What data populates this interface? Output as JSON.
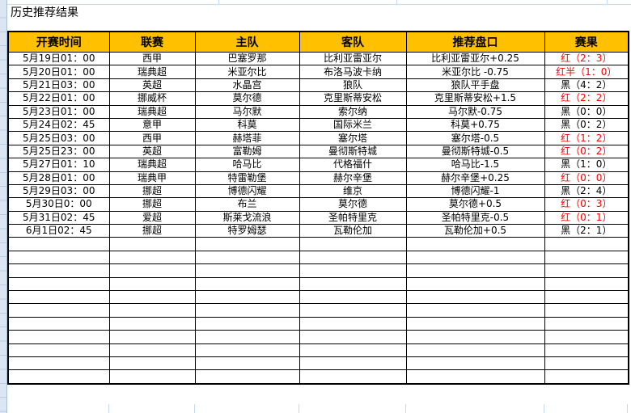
{
  "sheet": {
    "title": "历史推荐结果"
  },
  "colors": {
    "header_bg": "#FFC000",
    "result_red": "#FF0000",
    "result_black": "#000000",
    "gridline_blue": "#C5D9F1",
    "border_black": "#000000"
  },
  "table": {
    "headers": [
      "开赛时间",
      "联赛",
      "主队",
      "客队",
      "推荐盘口",
      "赛果"
    ],
    "empty_row_count": 11,
    "rows": [
      {
        "time": "5月19日01：00",
        "league": "西甲",
        "home": "巴塞罗那",
        "away": "比利亚雷亚尔",
        "handicap": "比利亚雷亚尔+0.25",
        "result": "红（2：3）",
        "result_color": "red"
      },
      {
        "time": "5月20日01：00",
        "league": "瑞典超",
        "home": "米亚尔比",
        "away": "布洛马波卡纳",
        "handicap": "米亚尔比 -0.75",
        "result": "红半（1：0）",
        "result_color": "red"
      },
      {
        "time": "5月21日03：00",
        "league": "英超",
        "home": "水晶宫",
        "away": "狼队",
        "handicap": "狼队平手盘",
        "result": "黑（4：2）",
        "result_color": "black"
      },
      {
        "time": "5月22日01：00",
        "league": "挪威杯",
        "home": "莫尔德",
        "away": "克里斯蒂安松",
        "handicap": "克里斯蒂安松+1.5",
        "result": "红（2：2）",
        "result_color": "red"
      },
      {
        "time": "5月23日01：00",
        "league": "瑞典超",
        "home": "马尔默",
        "away": "索尔纳",
        "handicap": "马尔默-0.75",
        "result": "黑（0：0）",
        "result_color": "black"
      },
      {
        "time": "5月24日02：45",
        "league": "意甲",
        "home": "科莫",
        "away": "国际米兰",
        "handicap": "科莫+0.75",
        "result": "黑（0：2）",
        "result_color": "black"
      },
      {
        "time": "5月25日03：00",
        "league": "西甲",
        "home": "赫塔菲",
        "away": "塞尔塔",
        "handicap": "塞尔塔-0.5",
        "result": "红（1：2）",
        "result_color": "red"
      },
      {
        "time": "5月25日23：00",
        "league": "英超",
        "home": "富勒姆",
        "away": "曼彻斯特城",
        "handicap": "曼彻斯特城-0.5",
        "result": "红（0：2）",
        "result_color": "red"
      },
      {
        "time": "5月27日01：10",
        "league": "瑞典超",
        "home": "哈马比",
        "away": "代格福什",
        "handicap": "哈马比-1.5",
        "result": "黑（1：0）",
        "result_color": "black"
      },
      {
        "time": "5月28日01：00",
        "league": "瑞典甲",
        "home": "特雷勒堡",
        "away": "赫尔辛堡",
        "handicap": "赫尔辛堡+0.25",
        "result": "红（0：0）",
        "result_color": "red"
      },
      {
        "time": "5月29日03：00",
        "league": "挪超",
        "home": "博德闪耀",
        "away": "维京",
        "handicap": "博德闪耀-1",
        "result": "黑（2：4）",
        "result_color": "black"
      },
      {
        "time": "5月30日0：00",
        "league": "挪超",
        "home": "布兰",
        "away": "莫尔德",
        "handicap": "莫尔德+0.5",
        "result": "红（0：3）",
        "result_color": "red"
      },
      {
        "time": "5月31日02：45",
        "league": "爱超",
        "home": "斯莱戈流浪",
        "away": "圣帕特里克",
        "handicap": "圣帕特里克-0.5",
        "result": "红（0：1）",
        "result_color": "red"
      },
      {
        "time": "6月1日02：45",
        "league": "挪超",
        "home": "特罗姆瑟",
        "away": "瓦勒伦加",
        "handicap": "瓦勒伦加+0.5",
        "result": "黑（2：1）",
        "result_color": "black"
      }
    ]
  }
}
